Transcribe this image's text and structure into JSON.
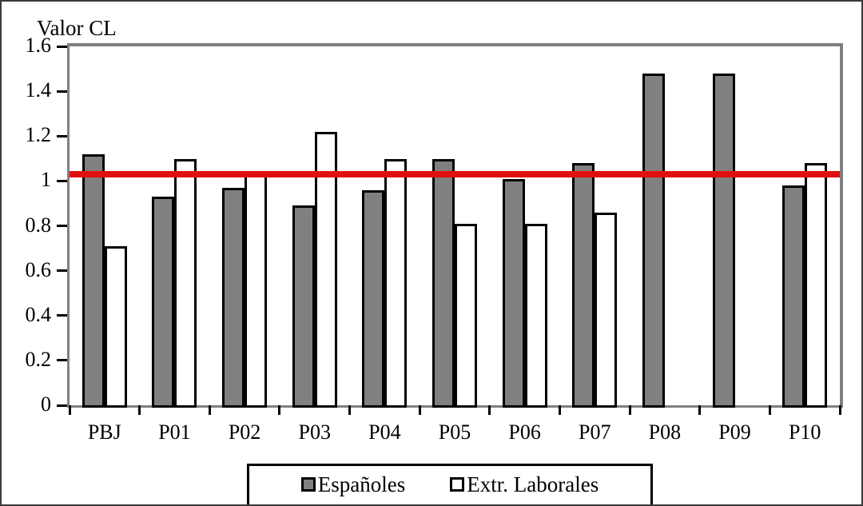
{
  "chart_data": {
    "type": "bar",
    "title": "Valor CL",
    "xlabel": "",
    "ylabel": "Valor CL",
    "categories": [
      "PBJ",
      "P01",
      "P02",
      "P03",
      "P04",
      "P05",
      "P06",
      "P07",
      "P08",
      "P09",
      "P10"
    ],
    "series": [
      {
        "name": "Españoles",
        "color": "#808080",
        "values": [
          1.13,
          0.94,
          0.98,
          0.9,
          0.97,
          1.11,
          1.02,
          1.09,
          1.49,
          1.49,
          0.99
        ]
      },
      {
        "name": "Extr. Laborales",
        "color": "#ffffff",
        "values": [
          0.72,
          1.11,
          1.04,
          1.23,
          1.11,
          0.82,
          0.82,
          0.87,
          null,
          null,
          1.09
        ]
      }
    ],
    "reference_line": {
      "value": 1.03,
      "color": "#e01010"
    },
    "y_ticks": [
      "0",
      "0.2",
      "0.4",
      "0.6",
      "0.8",
      "1",
      "1.2",
      "1.4",
      "1.6"
    ],
    "ylim": [
      0,
      1.6
    ],
    "bar_outline_color": "#000000",
    "axis_frame_color": "#808080",
    "grid": false,
    "legend_position": "bottom"
  }
}
